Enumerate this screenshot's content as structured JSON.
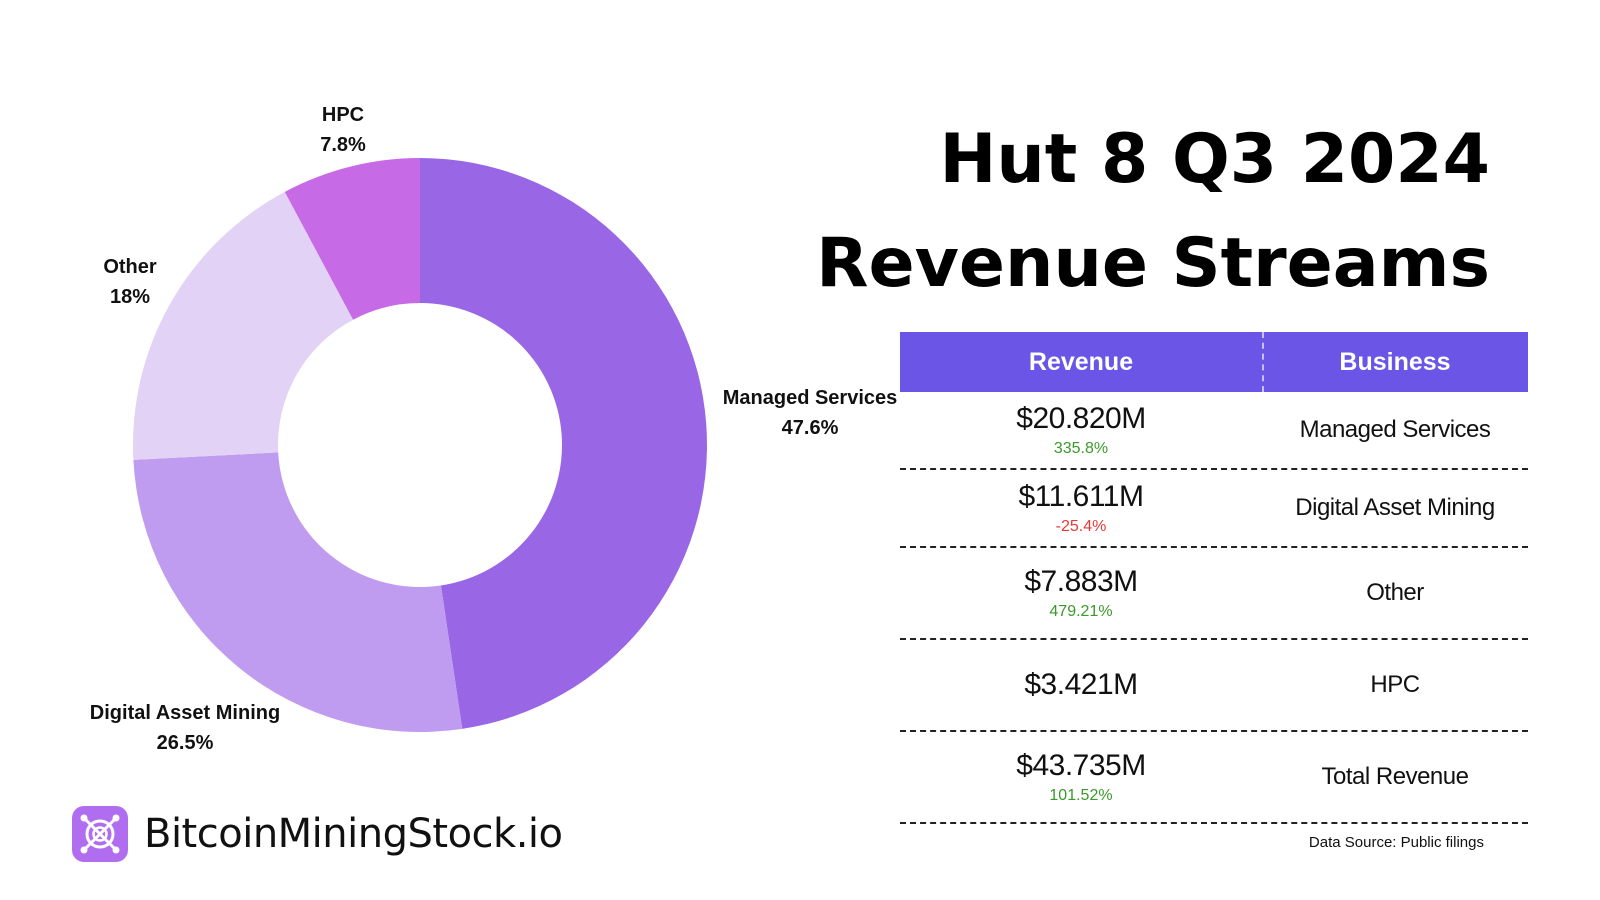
{
  "title": {
    "line1": "Hut 8 Q3 2024",
    "line2": "Revenue Streams"
  },
  "table": {
    "headers": {
      "revenue": "Revenue",
      "business": "Business"
    },
    "rows": [
      {
        "amount": "$20.820M",
        "change": "335.8%",
        "change_dir": "up",
        "business": "Managed Services"
      },
      {
        "amount": "$11.611M",
        "change": "-25.4%",
        "change_dir": "down",
        "business": "Digital Asset Mining"
      },
      {
        "amount": "$7.883M",
        "change": "479.21%",
        "change_dir": "up",
        "business": "Other"
      },
      {
        "amount": "$3.421M",
        "change": "",
        "change_dir": "none",
        "business": "HPC"
      },
      {
        "amount": "$43.735M",
        "change": "101.52%",
        "change_dir": "up",
        "business": "Total Revenue"
      }
    ]
  },
  "source": "Data Source: Public filings",
  "brand": {
    "name": "BitcoinMiningStock.io",
    "icon": "mining-logo-icon"
  },
  "colors": {
    "managed_services": "#9966e6",
    "digital_asset_mining": "#c09cf0",
    "other": "#e2d2f6",
    "hpc": "#c76ae6",
    "header": "#6a55e6",
    "positive": "#3a9a2a",
    "negative": "#e53935",
    "total": "#9b6be0"
  },
  "chart_data": {
    "type": "pie",
    "donut": true,
    "slices": [
      {
        "label": "Managed Services",
        "value": 47.6,
        "display": "47.6%",
        "color": "#9966e6"
      },
      {
        "label": "Digital Asset Mining",
        "value": 26.5,
        "display": "26.5%",
        "color": "#c09cf0"
      },
      {
        "label": "Other",
        "value": 18,
        "display": "18%",
        "color": "#e2d2f6"
      },
      {
        "label": "HPC",
        "value": 7.8,
        "display": "7.8%",
        "color": "#c76ae6"
      }
    ],
    "start_angle": "12 o'clock",
    "direction": "clockwise"
  }
}
